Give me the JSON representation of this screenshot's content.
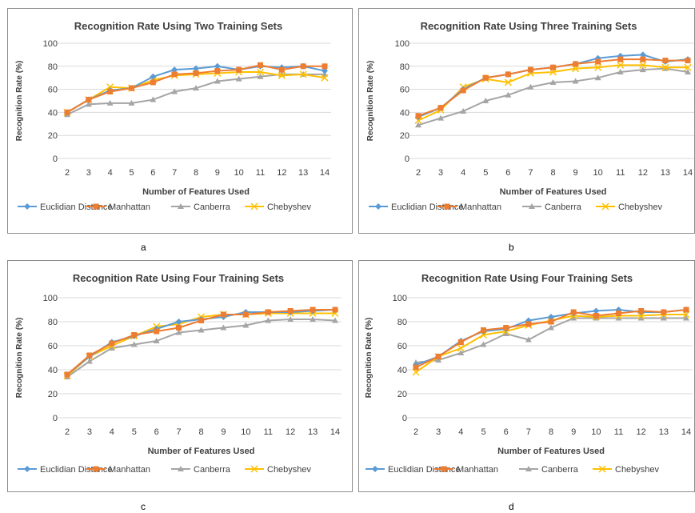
{
  "chart_data": [
    {
      "type": "line",
      "title": "Recognition Rate Using Two Training Sets",
      "xlabel": "Number of Features Used",
      "ylabel": "Recognition Rate (%)",
      "ylim": [
        0,
        100
      ],
      "yticks": [
        0,
        20,
        40,
        60,
        80,
        100
      ],
      "grid": true,
      "legend": "bottom",
      "panel_label": "a",
      "categories": [
        "2",
        "3",
        "4",
        "5",
        "6",
        "7",
        "8",
        "9",
        "10",
        "11",
        "12",
        "13",
        "14"
      ],
      "series": [
        {
          "name": "Euclidian Distance",
          "values": [
            40,
            51,
            59,
            61,
            71,
            77,
            78,
            80,
            77,
            80,
            79,
            80,
            76
          ]
        },
        {
          "name": "Manhattan",
          "values": [
            40,
            51,
            58,
            61,
            66,
            73,
            74,
            76,
            77,
            81,
            77,
            80,
            80
          ]
        },
        {
          "name": "Canberra",
          "values": [
            38,
            47,
            48,
            48,
            51,
            58,
            61,
            67,
            69,
            71,
            73,
            73,
            73
          ]
        },
        {
          "name": "Chebyshev",
          "values": [
            40,
            51,
            62,
            61,
            68,
            72,
            73,
            74,
            75,
            75,
            72,
            73,
            70
          ]
        }
      ]
    },
    {
      "type": "line",
      "title": "Recognition Rate Using Three Training Sets",
      "xlabel": "Number of Features Used",
      "ylabel": "Recognition Rate (%)",
      "ylim": [
        0,
        100
      ],
      "yticks": [
        0,
        20,
        40,
        60,
        80,
        100
      ],
      "grid": true,
      "legend": "bottom",
      "panel_label": "b",
      "categories": [
        "2",
        "3",
        "4",
        "5",
        "6",
        "7",
        "8",
        "9",
        "10",
        "11",
        "12",
        "13",
        "14"
      ],
      "series": [
        {
          "name": "Euclidian Distance",
          "values": [
            36,
            44,
            60,
            70,
            73,
            77,
            79,
            82,
            87,
            89,
            90,
            84,
            86
          ]
        },
        {
          "name": "Manhattan",
          "values": [
            37,
            44,
            59,
            70,
            73,
            77,
            79,
            82,
            84,
            86,
            86,
            85,
            85
          ]
        },
        {
          "name": "Canberra",
          "values": [
            29,
            35,
            41,
            50,
            55,
            62,
            66,
            67,
            70,
            75,
            77,
            78,
            75
          ]
        },
        {
          "name": "Chebyshev",
          "values": [
            33,
            42,
            62,
            69,
            66,
            74,
            75,
            78,
            79,
            81,
            81,
            79,
            79
          ]
        }
      ]
    },
    {
      "type": "line",
      "title": "Recognition Rate Using Four Training Sets",
      "xlabel": "Number of Features Used",
      "ylabel": "Recognition Rate (%)",
      "ylim": [
        0,
        100
      ],
      "yticks": [
        0,
        20,
        40,
        60,
        80,
        100
      ],
      "grid": true,
      "legend": "bottom",
      "panel_label": "c",
      "categories": [
        "2",
        "3",
        "4",
        "5",
        "6",
        "7",
        "8",
        "9",
        "10",
        "11",
        "12",
        "13",
        "14"
      ],
      "series": [
        {
          "name": "Euclidian Distance",
          "values": [
            36,
            51,
            63,
            68,
            74,
            80,
            82,
            84,
            88,
            88,
            88,
            89,
            90
          ]
        },
        {
          "name": "Manhattan",
          "values": [
            36,
            52,
            62,
            69,
            72,
            75,
            81,
            86,
            86,
            88,
            89,
            90,
            90
          ]
        },
        {
          "name": "Canberra",
          "values": [
            34,
            47,
            58,
            61,
            64,
            71,
            73,
            75,
            77,
            81,
            82,
            82,
            81
          ]
        },
        {
          "name": "Chebyshev",
          "values": [
            35,
            51,
            60,
            68,
            76,
            78,
            84,
            86,
            86,
            87,
            87,
            87,
            87
          ]
        }
      ]
    },
    {
      "type": "line",
      "title": "Recognition Rate Using Four Training Sets",
      "xlabel": "Number of Features Used",
      "ylabel": "Recognition Rate (%)",
      "ylim": [
        0,
        100
      ],
      "yticks": [
        0,
        20,
        40,
        60,
        80,
        100
      ],
      "grid": true,
      "legend": "bottom",
      "panel_label": "d",
      "categories": [
        "2",
        "3",
        "4",
        "5",
        "6",
        "7",
        "8",
        "9",
        "10",
        "11",
        "12",
        "13",
        "14"
      ],
      "series": [
        {
          "name": "Euclidian Distance",
          "values": [
            44,
            51,
            64,
            72,
            74,
            81,
            84,
            87,
            89,
            90,
            88,
            88,
            90
          ]
        },
        {
          "name": "Manhattan",
          "values": [
            42,
            51,
            63,
            73,
            75,
            78,
            80,
            88,
            85,
            87,
            89,
            88,
            90
          ]
        },
        {
          "name": "Canberra",
          "values": [
            46,
            48,
            54,
            61,
            70,
            65,
            75,
            83,
            83,
            83,
            83,
            83,
            83
          ]
        },
        {
          "name": "Chebyshev",
          "values": [
            38,
            51,
            58,
            69,
            72,
            77,
            81,
            85,
            84,
            85,
            85,
            86,
            86
          ]
        }
      ]
    }
  ],
  "colors": {
    "Euclidian Distance": "#5b9bd5",
    "Manhattan": "#ed7d31",
    "Canberra": "#a5a5a5",
    "Chebyshev": "#ffc000"
  },
  "markers": {
    "Euclidian Distance": "diamond",
    "Manhattan": "square",
    "Canberra": "triangle",
    "Chebyshev": "x"
  }
}
